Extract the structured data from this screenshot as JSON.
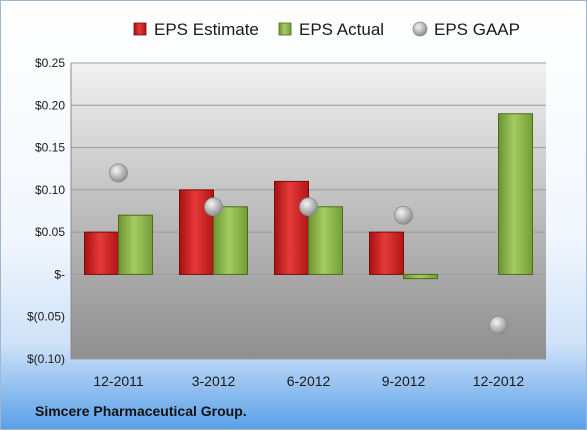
{
  "footer": "Simcere Pharmaceutical Group.",
  "chart_data": {
    "type": "bar",
    "categories": [
      "12-2011",
      "3-2012",
      "6-2012",
      "9-2012",
      "12-2012"
    ],
    "series": [
      {
        "name": "EPS Estimate",
        "kind": "bar",
        "color": "#cc1f1f",
        "values": [
          0.05,
          0.1,
          0.11,
          0.05,
          null
        ]
      },
      {
        "name": "EPS Actual",
        "kind": "bar",
        "color": "#8cb84a",
        "values": [
          0.07,
          0.08,
          0.08,
          -0.005,
          0.19
        ]
      },
      {
        "name": "EPS GAAP",
        "kind": "marker",
        "color": "#b0b0b0",
        "values": [
          0.12,
          0.08,
          0.08,
          0.07,
          -0.06
        ]
      }
    ],
    "yticks": [
      {
        "value": 0.25,
        "label": "$0.25"
      },
      {
        "value": 0.2,
        "label": "$0.20"
      },
      {
        "value": 0.15,
        "label": "$0.15"
      },
      {
        "value": 0.1,
        "label": "$0.10"
      },
      {
        "value": 0.05,
        "label": "$0.05"
      },
      {
        "value": 0,
        "label": "$-"
      },
      {
        "value": -0.05,
        "label": "$(0.05)"
      },
      {
        "value": -0.1,
        "label": "$(0.10)"
      }
    ],
    "ylim": [
      -0.1,
      0.25
    ],
    "grid": true,
    "legend_position": "top"
  }
}
